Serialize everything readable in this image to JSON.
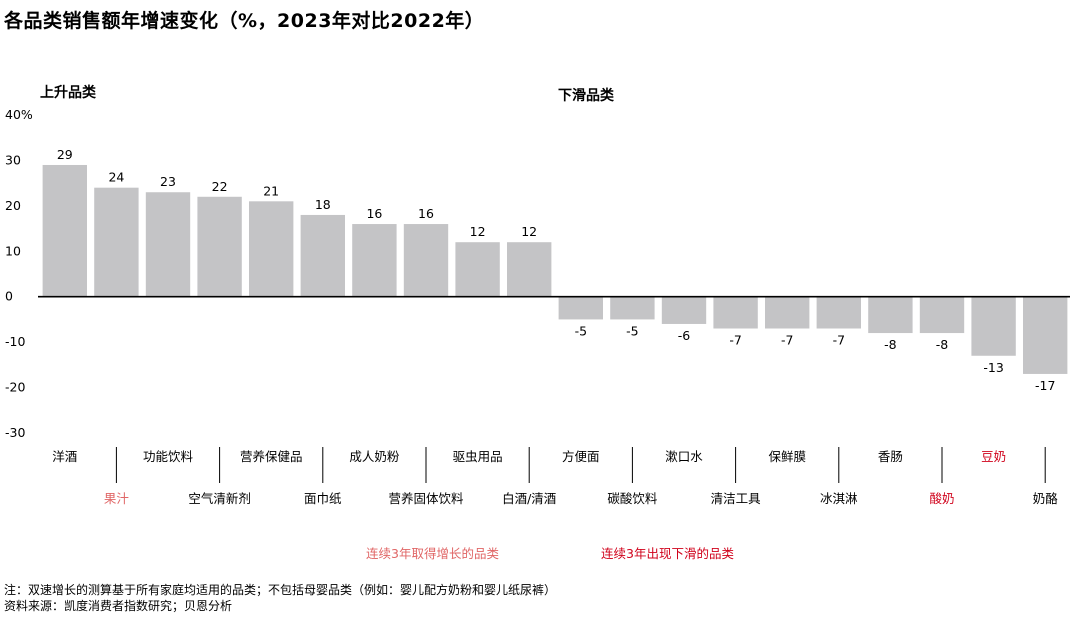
{
  "title": "各品类销售额年增速变化（%，2023年对比2022年）",
  "section_rise": "上升品类",
  "section_fall": "下滑品类",
  "legend": {
    "growth_3yr": "连续3年取得增长的品类",
    "decline_3yr": "连续3年出现下滑的品类"
  },
  "footnote": "注：双速增长的测算基于所有家庭均适用的品类；不包括母婴品类（例如：婴儿配方奶粉和婴儿纸尿裤）",
  "source": "资料来源：凯度消费者指数研究；贝恩分析",
  "colors": {
    "bar": "#c4c4c6",
    "growth_3yr": "#e06666",
    "decline_3yr": "#d0021b",
    "axis": "#000000"
  },
  "chart_data": {
    "type": "bar",
    "title": "各品类销售额年增速变化（%，2023年对比2022年）",
    "ylim": [
      -30,
      40
    ],
    "yticks": [
      -30,
      -20,
      -10,
      0,
      10,
      20,
      30,
      40
    ],
    "ytick_labels": [
      "-30",
      "-20",
      "-10",
      "0",
      "10",
      "20",
      "30",
      "40%"
    ],
    "categories": [
      "洋酒",
      "果汁",
      "功能饮料",
      "空气清新剂",
      "营养保健品",
      "面巾纸",
      "成人奶粉",
      "营养固体饮料",
      "驱虫用品",
      "白酒/清酒",
      "方便面",
      "碳酸饮料",
      "漱口水",
      "清洁工具",
      "保鲜膜",
      "冰淇淋",
      "香肠",
      "酸奶",
      "豆奶",
      "奶酪"
    ],
    "values": [
      29,
      24,
      23,
      22,
      21,
      18,
      16,
      16,
      12,
      12,
      -5,
      -5,
      -6,
      -7,
      -7,
      -7,
      -8,
      -8,
      -13,
      -17
    ],
    "category_status": [
      "",
      "growth_3yr",
      "",
      "",
      "",
      "",
      "",
      "",
      "",
      "",
      "",
      "",
      "",
      "",
      "",
      "",
      "",
      "decline_3yr",
      "decline_3yr",
      ""
    ],
    "grid": false
  }
}
